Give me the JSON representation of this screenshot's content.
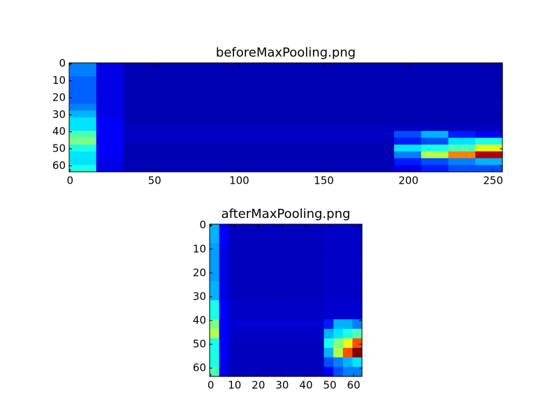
{
  "chart_data": [
    {
      "type": "heatmap",
      "title": "beforeMaxPooling.png",
      "xlim": [
        -0.5,
        255.5
      ],
      "ylim": [
        63.5,
        -0.5
      ],
      "xticks": [
        0,
        50,
        100,
        150,
        200,
        250
      ],
      "yticks": [
        0,
        10,
        20,
        30,
        40,
        50,
        60
      ],
      "colormap": "jet",
      "values": [
        [
          0.25,
          0.1,
          0.05,
          0.05,
          0.05,
          0.05,
          0.05,
          0.05,
          0.05,
          0.05,
          0.05,
          0.05,
          0.05,
          0.05,
          0.05,
          0.05
        ],
        [
          0.25,
          0.1,
          0.05,
          0.05,
          0.05,
          0.05,
          0.05,
          0.05,
          0.05,
          0.05,
          0.05,
          0.05,
          0.05,
          0.05,
          0.05,
          0.05
        ],
        [
          0.22,
          0.1,
          0.05,
          0.05,
          0.05,
          0.05,
          0.05,
          0.05,
          0.05,
          0.05,
          0.05,
          0.05,
          0.05,
          0.05,
          0.05,
          0.05
        ],
        [
          0.22,
          0.1,
          0.05,
          0.05,
          0.05,
          0.05,
          0.05,
          0.05,
          0.05,
          0.05,
          0.05,
          0.05,
          0.05,
          0.05,
          0.05,
          0.05
        ],
        [
          0.22,
          0.1,
          0.05,
          0.05,
          0.05,
          0.05,
          0.05,
          0.05,
          0.05,
          0.05,
          0.05,
          0.05,
          0.05,
          0.05,
          0.05,
          0.05
        ],
        [
          0.22,
          0.1,
          0.05,
          0.05,
          0.05,
          0.05,
          0.05,
          0.05,
          0.05,
          0.05,
          0.05,
          0.05,
          0.05,
          0.05,
          0.05,
          0.05
        ],
        [
          0.25,
          0.1,
          0.05,
          0.05,
          0.05,
          0.05,
          0.05,
          0.05,
          0.05,
          0.05,
          0.05,
          0.05,
          0.05,
          0.05,
          0.05,
          0.05
        ],
        [
          0.3,
          0.1,
          0.05,
          0.05,
          0.05,
          0.05,
          0.05,
          0.05,
          0.05,
          0.05,
          0.05,
          0.05,
          0.05,
          0.05,
          0.05,
          0.05
        ],
        [
          0.35,
          0.12,
          0.05,
          0.05,
          0.05,
          0.05,
          0.05,
          0.05,
          0.05,
          0.05,
          0.05,
          0.05,
          0.05,
          0.05,
          0.05,
          0.05
        ],
        [
          0.35,
          0.12,
          0.06,
          0.06,
          0.06,
          0.06,
          0.06,
          0.06,
          0.06,
          0.06,
          0.06,
          0.06,
          0.06,
          0.06,
          0.06,
          0.06
        ],
        [
          0.45,
          0.12,
          0.07,
          0.07,
          0.07,
          0.07,
          0.07,
          0.07,
          0.07,
          0.07,
          0.07,
          0.07,
          0.2,
          0.3,
          0.15,
          0.12
        ],
        [
          0.5,
          0.12,
          0.06,
          0.06,
          0.06,
          0.06,
          0.06,
          0.06,
          0.06,
          0.06,
          0.06,
          0.06,
          0.15,
          0.2,
          0.35,
          0.4
        ],
        [
          0.4,
          0.12,
          0.05,
          0.05,
          0.05,
          0.05,
          0.05,
          0.05,
          0.05,
          0.05,
          0.05,
          0.05,
          0.35,
          0.4,
          0.45,
          0.6
        ],
        [
          0.35,
          0.12,
          0.05,
          0.05,
          0.05,
          0.05,
          0.05,
          0.05,
          0.05,
          0.05,
          0.05,
          0.05,
          0.25,
          0.55,
          0.75,
          0.95
        ],
        [
          0.35,
          0.1,
          0.05,
          0.05,
          0.05,
          0.05,
          0.05,
          0.05,
          0.05,
          0.05,
          0.05,
          0.05,
          0.15,
          0.2,
          0.25,
          0.3
        ],
        [
          0.4,
          0.1,
          0.05,
          0.05,
          0.05,
          0.05,
          0.05,
          0.05,
          0.05,
          0.05,
          0.05,
          0.05,
          0.1,
          0.15,
          0.2,
          0.2
        ]
      ]
    },
    {
      "type": "heatmap",
      "title": "afterMaxPooling.png",
      "xlim": [
        -0.5,
        63.5
      ],
      "ylim": [
        63.5,
        -0.5
      ],
      "xticks": [
        0,
        10,
        20,
        30,
        40,
        50,
        60
      ],
      "yticks": [
        0,
        10,
        20,
        30,
        40,
        50,
        60
      ],
      "colormap": "jet",
      "values": [
        [
          0.3,
          0.12,
          0.06,
          0.06,
          0.06,
          0.06,
          0.06,
          0.06,
          0.06,
          0.06,
          0.06,
          0.06,
          0.07,
          0.07,
          0.07,
          0.07
        ],
        [
          0.3,
          0.12,
          0.06,
          0.06,
          0.06,
          0.06,
          0.06,
          0.06,
          0.06,
          0.06,
          0.06,
          0.06,
          0.07,
          0.07,
          0.07,
          0.07
        ],
        [
          0.28,
          0.1,
          0.06,
          0.06,
          0.06,
          0.06,
          0.06,
          0.06,
          0.06,
          0.06,
          0.06,
          0.06,
          0.07,
          0.07,
          0.07,
          0.07
        ],
        [
          0.28,
          0.1,
          0.06,
          0.06,
          0.06,
          0.06,
          0.06,
          0.06,
          0.06,
          0.06,
          0.06,
          0.06,
          0.07,
          0.07,
          0.07,
          0.07
        ],
        [
          0.28,
          0.1,
          0.06,
          0.06,
          0.06,
          0.06,
          0.06,
          0.06,
          0.06,
          0.06,
          0.06,
          0.06,
          0.07,
          0.07,
          0.07,
          0.07
        ],
        [
          0.28,
          0.1,
          0.06,
          0.06,
          0.06,
          0.06,
          0.06,
          0.06,
          0.06,
          0.06,
          0.06,
          0.06,
          0.07,
          0.07,
          0.07,
          0.07
        ],
        [
          0.3,
          0.1,
          0.06,
          0.06,
          0.06,
          0.06,
          0.06,
          0.06,
          0.06,
          0.06,
          0.06,
          0.06,
          0.07,
          0.07,
          0.07,
          0.07
        ],
        [
          0.3,
          0.1,
          0.06,
          0.06,
          0.06,
          0.06,
          0.06,
          0.06,
          0.06,
          0.06,
          0.06,
          0.06,
          0.07,
          0.07,
          0.07,
          0.07
        ],
        [
          0.4,
          0.12,
          0.07,
          0.07,
          0.07,
          0.07,
          0.07,
          0.07,
          0.07,
          0.07,
          0.07,
          0.07,
          0.08,
          0.08,
          0.08,
          0.08
        ],
        [
          0.4,
          0.12,
          0.07,
          0.07,
          0.07,
          0.07,
          0.07,
          0.07,
          0.07,
          0.07,
          0.07,
          0.07,
          0.08,
          0.08,
          0.08,
          0.08
        ],
        [
          0.5,
          0.12,
          0.08,
          0.08,
          0.08,
          0.08,
          0.08,
          0.08,
          0.08,
          0.08,
          0.08,
          0.08,
          0.15,
          0.3,
          0.3,
          0.25
        ],
        [
          0.55,
          0.12,
          0.07,
          0.07,
          0.07,
          0.07,
          0.07,
          0.07,
          0.07,
          0.07,
          0.07,
          0.07,
          0.3,
          0.35,
          0.4,
          0.45
        ],
        [
          0.4,
          0.12,
          0.06,
          0.06,
          0.06,
          0.06,
          0.06,
          0.06,
          0.06,
          0.06,
          0.06,
          0.06,
          0.4,
          0.5,
          0.6,
          0.8
        ],
        [
          0.4,
          0.12,
          0.06,
          0.06,
          0.06,
          0.06,
          0.06,
          0.06,
          0.06,
          0.06,
          0.06,
          0.06,
          0.3,
          0.55,
          0.8,
          1.0
        ],
        [
          0.4,
          0.1,
          0.06,
          0.06,
          0.06,
          0.06,
          0.06,
          0.06,
          0.06,
          0.06,
          0.06,
          0.06,
          0.2,
          0.25,
          0.3,
          0.35
        ],
        [
          0.45,
          0.1,
          0.06,
          0.06,
          0.06,
          0.06,
          0.06,
          0.06,
          0.06,
          0.06,
          0.06,
          0.06,
          0.12,
          0.2,
          0.25,
          0.25
        ]
      ]
    }
  ]
}
